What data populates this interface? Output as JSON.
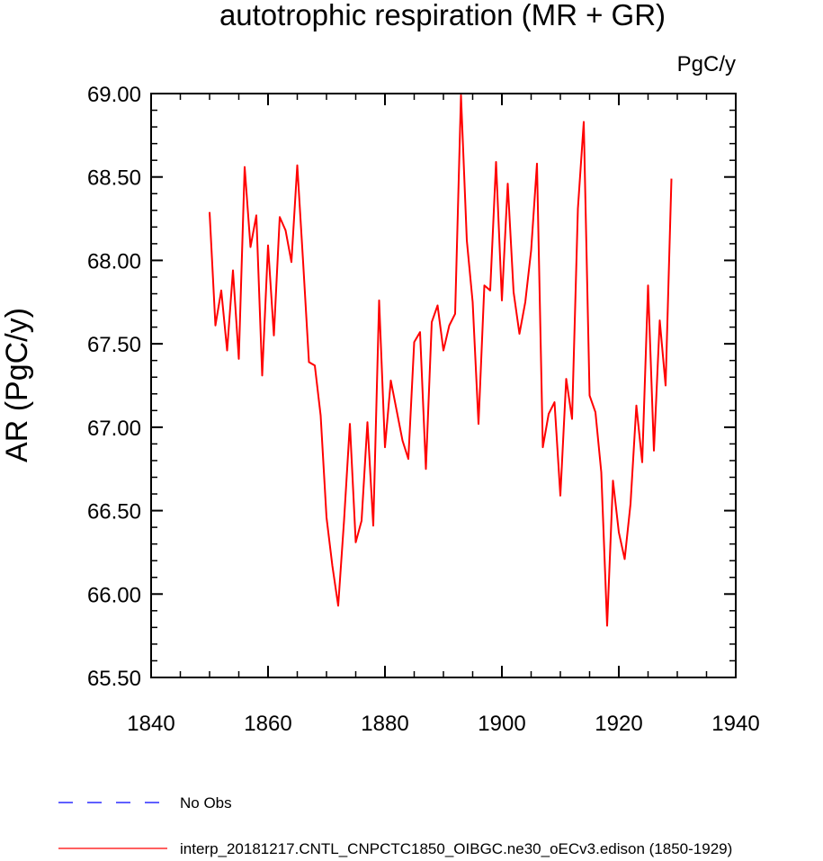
{
  "chart_data": {
    "type": "line",
    "title": "autotrophic respiration (MR + GR)",
    "units": "PgC/y",
    "ylabel": "AR  (PgC/y)",
    "xlabel": "",
    "xlim": [
      1840,
      1940
    ],
    "ylim": [
      65.5,
      69.0
    ],
    "xticks": [
      1840,
      1860,
      1880,
      1900,
      1920,
      1940
    ],
    "xtick_labels": [
      "1840",
      "1860",
      "1880",
      "1900",
      "1920",
      "1940"
    ],
    "yticks": [
      65.5,
      66.0,
      66.5,
      67.0,
      67.5,
      68.0,
      68.5,
      69.0
    ],
    "ytick_labels": [
      "65.50",
      "66.00",
      "66.50",
      "67.00",
      "67.50",
      "68.00",
      "68.50",
      "69.00"
    ],
    "grid": false,
    "series": [
      {
        "name": "interp_20181217.CNTL_CNPCTC1850_OIBGC.ne30_oECv3.edison (1850-1929)",
        "color": "#ff0000",
        "dash": "solid",
        "x": [
          1850,
          1851,
          1852,
          1853,
          1854,
          1855,
          1856,
          1857,
          1858,
          1859,
          1860,
          1861,
          1862,
          1863,
          1864,
          1865,
          1866,
          1867,
          1868,
          1869,
          1870,
          1871,
          1872,
          1873,
          1874,
          1875,
          1876,
          1877,
          1878,
          1879,
          1880,
          1881,
          1882,
          1883,
          1884,
          1885,
          1886,
          1887,
          1888,
          1889,
          1890,
          1891,
          1892,
          1893,
          1894,
          1895,
          1896,
          1897,
          1898,
          1899,
          1900,
          1901,
          1902,
          1903,
          1904,
          1905,
          1906,
          1907,
          1908,
          1909,
          1910,
          1911,
          1912,
          1913,
          1914,
          1915,
          1916,
          1917,
          1918,
          1919,
          1920,
          1921,
          1922,
          1923,
          1924,
          1925,
          1926,
          1927,
          1928,
          1929
        ],
        "values": [
          68.29,
          67.61,
          67.82,
          67.46,
          67.94,
          67.41,
          68.56,
          68.08,
          68.27,
          67.31,
          68.09,
          67.55,
          68.26,
          68.18,
          67.99,
          68.57,
          67.99,
          67.39,
          67.37,
          67.07,
          66.46,
          66.17,
          65.93,
          66.44,
          67.02,
          66.31,
          66.44,
          67.03,
          66.41,
          67.76,
          66.88,
          67.28,
          67.1,
          66.92,
          66.81,
          67.51,
          67.57,
          66.75,
          67.63,
          67.73,
          67.46,
          67.61,
          67.68,
          68.99,
          68.12,
          67.75,
          67.02,
          67.85,
          67.82,
          68.59,
          67.76,
          68.46,
          67.81,
          67.56,
          67.75,
          68.06,
          68.58,
          66.88,
          67.08,
          67.15,
          66.59,
          67.29,
          67.05,
          68.31,
          68.83,
          67.19,
          67.09,
          66.73,
          65.81,
          66.68,
          66.37,
          66.21,
          66.54,
          67.13,
          66.79,
          67.85,
          66.86,
          67.64,
          67.25,
          68.49
        ]
      },
      {
        "name": "No Obs",
        "color": "#0000ff",
        "dash": "dashed",
        "x": [],
        "values": []
      }
    ]
  }
}
